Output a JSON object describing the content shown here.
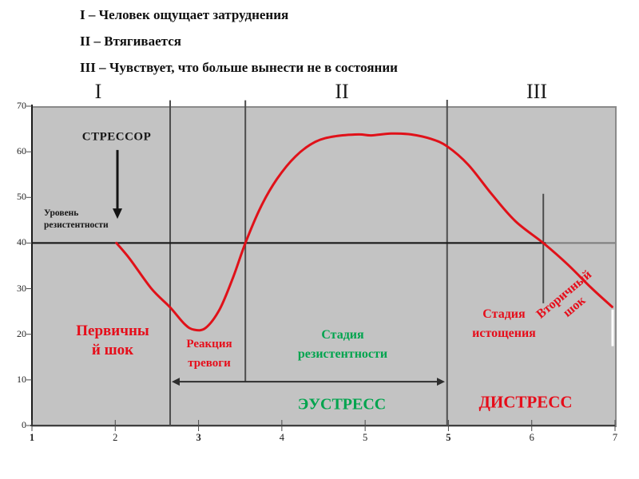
{
  "header": {
    "lines": [
      "I – Человек ощущает затруднения",
      "II – Втягивается",
      "III – Чувствует, что больше вынести не в состоянии"
    ]
  },
  "labels": {
    "stressor": "СТРЕССОР",
    "resistance_level": [
      "Уровень",
      "резистентности"
    ],
    "primary_shock": [
      "Первичны",
      "й шок"
    ],
    "alarm_reaction": [
      "Реакция",
      "тревоги"
    ],
    "resistance_stage": [
      "Стадия",
      "резистентности"
    ],
    "exhaustion_stage": [
      "Стадия",
      "истощения"
    ],
    "secondary_shock": [
      "Вторичный",
      "шок"
    ],
    "eustress": "ЭУСТРЕСС",
    "distress": "ДИСТРЕСС"
  },
  "colors": {
    "curve_red": "#e01119",
    "text_red": "#e60d1a",
    "text_green": "#00a44e",
    "plot_bg": "#c3c3c3",
    "divider_gray": "#4d4d4d",
    "axis_dark": "#1a1a1a",
    "border_gray": "#8a8a8a"
  },
  "chart_data": {
    "type": "line",
    "title": "",
    "xlabel": "",
    "ylabel": "",
    "ylim": [
      0,
      70
    ],
    "grid": false,
    "phase_labels": [
      "I",
      "II",
      "III"
    ],
    "x_ticks": [
      "1",
      "2",
      "3",
      "4",
      "5",
      "5",
      "6",
      "7"
    ],
    "x_ticks_bold": [
      true,
      false,
      true,
      false,
      false,
      true,
      false,
      false
    ],
    "y_ticks": [
      "0",
      "10",
      "20",
      "30",
      "40",
      "50",
      "60",
      "70"
    ],
    "resistance_level_value": 40,
    "series": [
      {
        "name": "Кривая стресса (уровень резистентности во времени)",
        "color": "#e01119",
        "points_tv": [
          [
            0.145,
            40
          ],
          [
            0.168,
            36.5
          ],
          [
            0.205,
            30
          ],
          [
            0.237,
            25.9
          ],
          [
            0.262,
            22.2
          ],
          [
            0.278,
            21
          ],
          [
            0.298,
            21.4
          ],
          [
            0.322,
            25.5
          ],
          [
            0.345,
            32.5
          ],
          [
            0.366,
            40
          ],
          [
            0.392,
            47.8
          ],
          [
            0.42,
            54
          ],
          [
            0.452,
            59
          ],
          [
            0.486,
            62.2
          ],
          [
            0.52,
            63.4
          ],
          [
            0.56,
            63.8
          ],
          [
            0.582,
            63.6
          ],
          [
            0.616,
            64
          ],
          [
            0.65,
            63.8
          ],
          [
            0.685,
            62.8
          ],
          [
            0.712,
            61.2
          ],
          [
            0.748,
            57.2
          ],
          [
            0.788,
            50.8
          ],
          [
            0.829,
            44.8
          ],
          [
            0.877,
            40
          ],
          [
            0.918,
            35.4
          ],
          [
            0.959,
            30.2
          ],
          [
            0.995,
            26
          ]
        ]
      }
    ],
    "annotations": {
      "dividers": [
        {
          "t": 0.237,
          "v_from": 71.3,
          "v_to": 0
        },
        {
          "t": 0.366,
          "v_from": 71.3,
          "v_to": 9.6
        },
        {
          "t": 0.712,
          "v_from": 71.4,
          "v_to": 0
        },
        {
          "t": 0.877,
          "v_from": 50.8,
          "v_to": 26.8
        }
      ],
      "resistance_line": {
        "v": 40,
        "gray_t": [
          0,
          1
        ],
        "black_t": [
          0,
          0.881
        ]
      },
      "stressor_arrow": {
        "t": 0.1466,
        "v_from": 60.4,
        "v_to": 45.3
      },
      "span_arrow": {
        "v": 9.6,
        "t1": 0.2397,
        "t2": 0.7082
      },
      "white_mark": {
        "t": 0.9959,
        "v_from": 25.4,
        "v_to": 17.4
      }
    }
  }
}
